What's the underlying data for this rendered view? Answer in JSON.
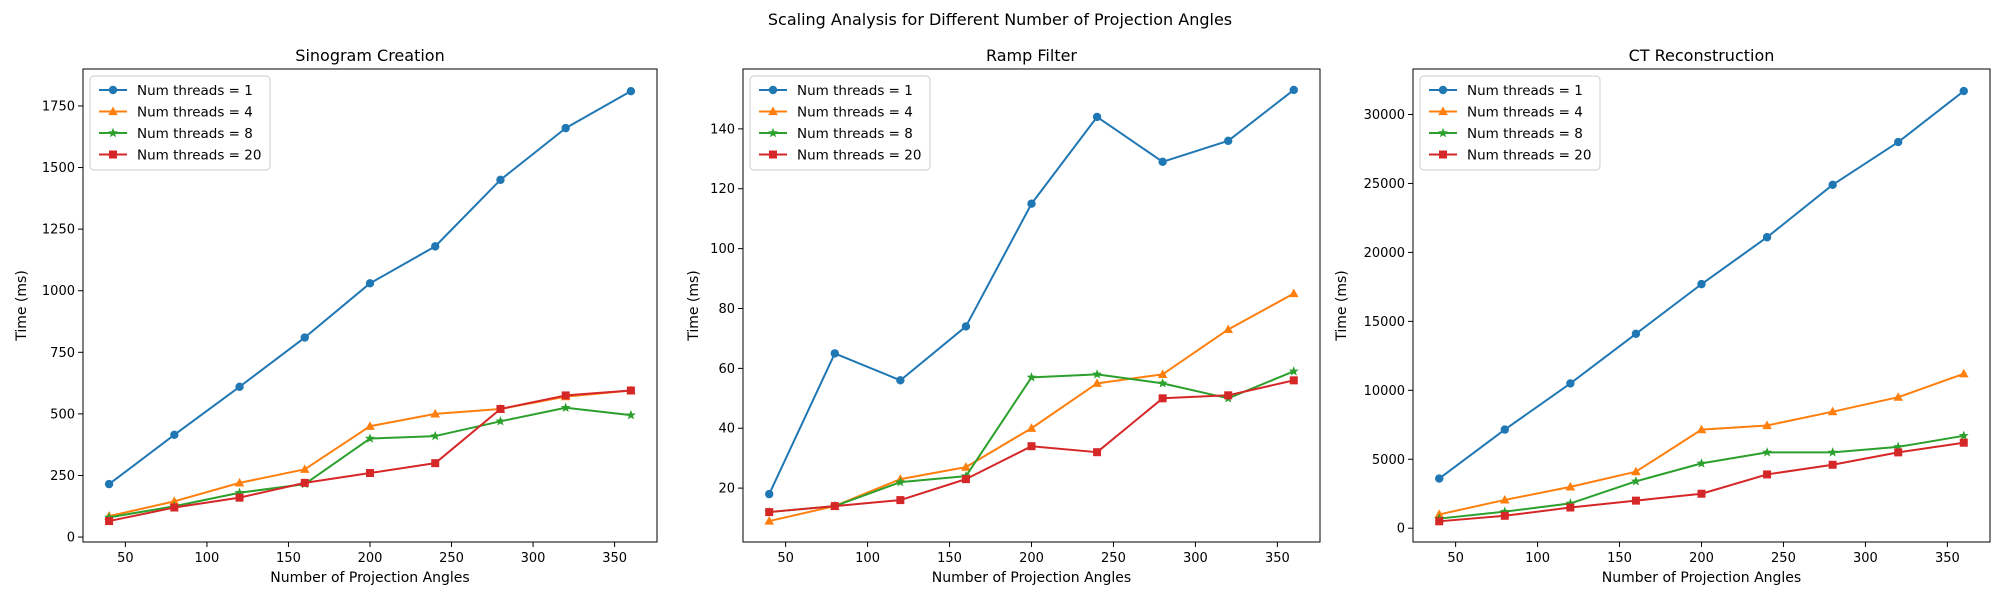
{
  "figure": {
    "suptitle": "Scaling Analysis for Different Number of Projection Angles"
  },
  "chart_data": [
    {
      "type": "line",
      "title": "Sinogram Creation",
      "xlabel": "Number of Projection Angles",
      "ylabel": "Time (ms)",
      "x": [
        40,
        80,
        120,
        160,
        200,
        240,
        280,
        320,
        360
      ],
      "xlim": [
        24,
        376
      ],
      "ylim": [
        -20,
        1900
      ],
      "xticks": [
        50,
        100,
        150,
        200,
        250,
        300,
        350
      ],
      "yticks": [
        0,
        250,
        500,
        750,
        1000,
        1250,
        1500,
        1750
      ],
      "legend": "top-left",
      "grid": false,
      "series": [
        {
          "name": "Num threads = 1",
          "color": "#1f77b4",
          "marker": "circle",
          "values": [
            215,
            415,
            610,
            810,
            1030,
            1180,
            1450,
            1660,
            1810
          ]
        },
        {
          "name": "Num threads = 4",
          "color": "#ff7f0e",
          "marker": "triangle",
          "values": [
            85,
            145,
            220,
            275,
            450,
            500,
            520,
            570,
            595
          ]
        },
        {
          "name": "Num threads = 8",
          "color": "#2ca02c",
          "marker": "star",
          "values": [
            80,
            125,
            180,
            215,
            400,
            410,
            470,
            525,
            495
          ]
        },
        {
          "name": "Num threads = 20",
          "color": "#d62728",
          "marker": "square",
          "values": [
            65,
            120,
            160,
            220,
            260,
            300,
            520,
            575,
            595
          ]
        }
      ]
    },
    {
      "type": "line",
      "title": "Ramp Filter",
      "xlabel": "Number of Projection Angles",
      "ylabel": "Time (ms)",
      "x": [
        40,
        80,
        120,
        160,
        200,
        240,
        280,
        320,
        360
      ],
      "xlim": [
        24,
        376
      ],
      "ylim": [
        2,
        160
      ],
      "xticks": [
        50,
        100,
        150,
        200,
        250,
        300,
        350
      ],
      "yticks": [
        20,
        40,
        60,
        80,
        100,
        120,
        140
      ],
      "legend": "top-left",
      "grid": false,
      "series": [
        {
          "name": "Num threads = 1",
          "color": "#1f77b4",
          "marker": "circle",
          "values": [
            18,
            65,
            56,
            74,
            115,
            144,
            129,
            136,
            153
          ]
        },
        {
          "name": "Num threads = 4",
          "color": "#ff7f0e",
          "marker": "triangle",
          "values": [
            9,
            14,
            23,
            27,
            40,
            55,
            58,
            73,
            85
          ]
        },
        {
          "name": "Num threads = 8",
          "color": "#2ca02c",
          "marker": "star",
          "values": [
            12,
            14,
            22,
            24,
            57,
            58,
            55,
            50,
            59
          ]
        },
        {
          "name": "Num threads = 20",
          "color": "#d62728",
          "marker": "square",
          "values": [
            12,
            14,
            16,
            23,
            34,
            32,
            50,
            51,
            56
          ]
        }
      ]
    },
    {
      "type": "line",
      "title": "CT Reconstruction",
      "xlabel": "Number of Projection Angles",
      "ylabel": "Time (ms)",
      "x": [
        40,
        80,
        120,
        160,
        200,
        240,
        280,
        320,
        360
      ],
      "xlim": [
        24,
        376
      ],
      "ylim": [
        -1000,
        33300
      ],
      "xticks": [
        50,
        100,
        150,
        200,
        250,
        300,
        350
      ],
      "yticks": [
        0,
        5000,
        10000,
        15000,
        20000,
        25000,
        30000
      ],
      "legend": "top-left",
      "grid": false,
      "series": [
        {
          "name": "Num threads = 1",
          "color": "#1f77b4",
          "marker": "circle",
          "values": [
            3600,
            7150,
            10500,
            14100,
            17700,
            21100,
            24900,
            28000,
            31700
          ]
        },
        {
          "name": "Num threads = 4",
          "color": "#ff7f0e",
          "marker": "triangle",
          "values": [
            1000,
            2050,
            3000,
            4100,
            7150,
            7450,
            8450,
            9500,
            11200
          ]
        },
        {
          "name": "Num threads = 8",
          "color": "#2ca02c",
          "marker": "star",
          "values": [
            700,
            1200,
            1800,
            3400,
            4700,
            5500,
            5500,
            5900,
            6700
          ]
        },
        {
          "name": "Num threads = 20",
          "color": "#d62728",
          "marker": "square",
          "values": [
            500,
            900,
            1500,
            2000,
            2500,
            3900,
            4600,
            5500,
            6200
          ]
        }
      ]
    }
  ]
}
